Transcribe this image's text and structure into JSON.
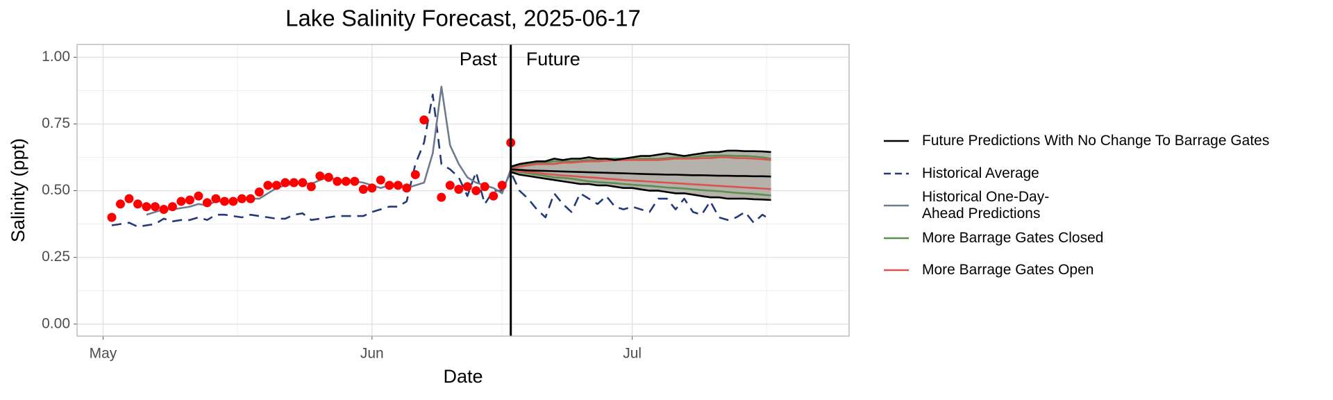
{
  "chart_data": {
    "type": "line",
    "title": "Lake Salinity Forecast, 2025-06-17",
    "x_label": "Date",
    "y_label": "Salinity (ppt)",
    "categories": [
      null,
      null,
      null,
      "May",
      null,
      null,
      null,
      null,
      null,
      null,
      null,
      null,
      null,
      null,
      null,
      null,
      null,
      null,
      null,
      null,
      null,
      null,
      null,
      null,
      null,
      null,
      null,
      null,
      null,
      null,
      null,
      null,
      null,
      null,
      "Jun",
      null,
      null,
      null,
      null,
      null,
      null,
      null,
      null,
      null,
      null,
      null,
      null,
      null,
      null,
      null,
      null,
      null,
      null,
      null,
      null,
      null,
      null,
      null,
      null,
      null,
      null,
      null,
      null,
      null,
      "Jul",
      null,
      null,
      null,
      null,
      null,
      null,
      null,
      null,
      null,
      null,
      null,
      null,
      null,
      null,
      null,
      null,
      null,
      null,
      null,
      null,
      null,
      null,
      null,
      null,
      null
    ],
    "xlim": [
      0,
      89
    ],
    "xminor": [
      18.5,
      49,
      79.5
    ],
    "ylim": [
      -0.045,
      1.048
    ],
    "yticks": [
      {
        "value": 0,
        "label": "0.00"
      },
      {
        "value": 0.25,
        "label": "0.25"
      },
      {
        "value": 0.5,
        "label": "0.50"
      },
      {
        "value": 0.75,
        "label": "0.75"
      },
      {
        "value": 1,
        "label": "1.00"
      }
    ],
    "yminor": [
      0.125,
      0.375,
      0.625,
      0.875
    ],
    "grid": true,
    "vline": {
      "x": 50,
      "labels": [
        "Past",
        "Future"
      ]
    },
    "ribbon": {
      "color": "#b5b2ab",
      "edge_color": "#000000",
      "upper": [
        null,
        null,
        null,
        null,
        null,
        null,
        null,
        null,
        null,
        null,
        null,
        null,
        null,
        null,
        null,
        null,
        null,
        null,
        null,
        null,
        null,
        null,
        null,
        null,
        null,
        null,
        null,
        null,
        null,
        null,
        null,
        null,
        null,
        null,
        null,
        null,
        null,
        null,
        null,
        null,
        null,
        null,
        null,
        null,
        null,
        null,
        null,
        null,
        null,
        null,
        0.59,
        0.6,
        0.605,
        0.61,
        0.61,
        0.62,
        0.615,
        0.62,
        0.62,
        0.625,
        0.62,
        0.62,
        0.615,
        0.62,
        0.625,
        0.63,
        0.63,
        0.635,
        0.64,
        0.635,
        0.63,
        0.635,
        0.64,
        0.645,
        0.645,
        0.65,
        0.65,
        0.648,
        0.648,
        0.647,
        0.645,
        null,
        null,
        null,
        null,
        null,
        null,
        null,
        null,
        null
      ],
      "lower": [
        null,
        null,
        null,
        null,
        null,
        null,
        null,
        null,
        null,
        null,
        null,
        null,
        null,
        null,
        null,
        null,
        null,
        null,
        null,
        null,
        null,
        null,
        null,
        null,
        null,
        null,
        null,
        null,
        null,
        null,
        null,
        null,
        null,
        null,
        null,
        null,
        null,
        null,
        null,
        null,
        null,
        null,
        null,
        null,
        null,
        null,
        null,
        null,
        null,
        null,
        0.57,
        0.56,
        0.555,
        0.55,
        0.545,
        0.54,
        0.535,
        0.53,
        0.525,
        0.525,
        0.52,
        0.52,
        0.515,
        0.51,
        0.51,
        0.505,
        0.5,
        0.5,
        0.495,
        0.49,
        0.49,
        0.485,
        0.48,
        0.475,
        0.475,
        0.47,
        0.47,
        0.47,
        0.468,
        0.467,
        0.465,
        null,
        null,
        null,
        null,
        null,
        null,
        null,
        null,
        null
      ]
    },
    "series": [
      {
        "name": "Future Predictions With No Change To Barrage Gates",
        "color": "#000000",
        "values": [
          null,
          null,
          null,
          null,
          null,
          null,
          null,
          null,
          null,
          null,
          null,
          null,
          null,
          null,
          null,
          null,
          null,
          null,
          null,
          null,
          null,
          null,
          null,
          null,
          null,
          null,
          null,
          null,
          null,
          null,
          null,
          null,
          null,
          null,
          null,
          null,
          null,
          null,
          null,
          null,
          null,
          null,
          null,
          null,
          null,
          null,
          null,
          null,
          null,
          null,
          0.58,
          0.578,
          0.576,
          0.575,
          0.574,
          0.573,
          0.572,
          0.571,
          0.57,
          0.569,
          0.568,
          0.567,
          0.566,
          0.565,
          0.564,
          0.563,
          0.562,
          0.561,
          0.56,
          0.56,
          0.559,
          0.558,
          0.558,
          0.557,
          0.556,
          0.556,
          0.555,
          0.555,
          0.554,
          0.554,
          0.553,
          null,
          null,
          null,
          null,
          null,
          null,
          null,
          null,
          null
        ]
      },
      {
        "name": "Historical Average",
        "color": "#22397a",
        "dashed": true,
        "values": [
          null,
          null,
          null,
          null,
          0.37,
          0.375,
          0.38,
          0.365,
          0.37,
          0.375,
          0.395,
          0.385,
          0.39,
          0.39,
          0.4,
          0.39,
          0.41,
          0.41,
          0.405,
          0.4,
          0.41,
          0.405,
          0.4,
          0.395,
          0.395,
          0.41,
          0.415,
          0.39,
          0.395,
          0.4,
          0.405,
          0.405,
          0.405,
          0.405,
          0.42,
          0.43,
          0.44,
          0.44,
          0.46,
          0.6,
          0.68,
          0.86,
          0.6,
          0.58,
          0.55,
          0.48,
          0.57,
          0.45,
          0.5,
          0.5,
          0.57,
          0.5,
          0.47,
          0.43,
          0.4,
          0.49,
          0.45,
          0.42,
          0.49,
          0.47,
          0.45,
          0.48,
          0.44,
          0.43,
          0.44,
          0.43,
          0.42,
          0.47,
          0.47,
          0.43,
          0.47,
          0.42,
          0.41,
          0.46,
          0.4,
          0.39,
          0.4,
          0.42,
          0.38,
          0.41,
          0.39,
          null,
          null,
          null,
          null,
          null,
          null,
          null,
          null,
          null
        ]
      },
      {
        "name": "Historical One-Day-\nAhead Predictions",
        "color": "#6f7a8f",
        "values": [
          null,
          null,
          null,
          null,
          null,
          null,
          null,
          null,
          0.41,
          0.42,
          0.43,
          0.43,
          0.435,
          0.44,
          0.45,
          0.445,
          0.46,
          0.46,
          0.46,
          0.47,
          0.47,
          0.47,
          0.49,
          0.51,
          0.52,
          0.525,
          0.53,
          0.525,
          0.54,
          0.55,
          0.54,
          0.535,
          0.535,
          0.53,
          0.52,
          0.51,
          0.52,
          0.52,
          0.51,
          0.52,
          0.53,
          0.64,
          0.89,
          0.67,
          0.6,
          0.55,
          0.53,
          0.52,
          0.51,
          0.49,
          0.58,
          null,
          null,
          null,
          null,
          null,
          null,
          null,
          null,
          null,
          null,
          null,
          null,
          null,
          null,
          null,
          null,
          null,
          null,
          null,
          null,
          null,
          null,
          null,
          null,
          null,
          null,
          null,
          null,
          null,
          null,
          null,
          null,
          null,
          null,
          null,
          null,
          null,
          null,
          null
        ]
      },
      {
        "name": "More Barrage Gates Closed",
        "color": "#5a8f4f",
        "values": [
          null,
          null,
          null,
          null,
          null,
          null,
          null,
          null,
          null,
          null,
          null,
          null,
          null,
          null,
          null,
          null,
          null,
          null,
          null,
          null,
          null,
          null,
          null,
          null,
          null,
          null,
          null,
          null,
          null,
          null,
          null,
          null,
          null,
          null,
          null,
          null,
          null,
          null,
          null,
          null,
          null,
          null,
          null,
          null,
          null,
          null,
          null,
          null,
          null,
          null,
          0.585,
          0.595,
          0.6,
          0.605,
          0.605,
          0.61,
          0.61,
          0.61,
          0.612,
          0.615,
          0.615,
          0.62,
          0.62,
          0.62,
          0.62,
          0.62,
          0.62,
          0.62,
          0.622,
          0.625,
          0.625,
          0.625,
          0.63,
          0.63,
          0.632,
          0.632,
          0.63,
          0.63,
          0.628,
          0.625,
          0.62,
          null,
          null,
          null,
          null,
          null,
          null,
          null,
          null,
          null
        ]
      },
      {
        "name": "More Barrage Gates Open",
        "color": "#d9534f",
        "values": [
          null,
          null,
          null,
          null,
          null,
          null,
          null,
          null,
          null,
          null,
          null,
          null,
          null,
          null,
          null,
          null,
          null,
          null,
          null,
          null,
          null,
          null,
          null,
          null,
          null,
          null,
          null,
          null,
          null,
          null,
          null,
          null,
          null,
          null,
          null,
          null,
          null,
          null,
          null,
          null,
          null,
          null,
          null,
          null,
          null,
          null,
          null,
          null,
          null,
          null,
          0.58,
          0.59,
          0.595,
          0.6,
          0.6,
          0.6,
          0.605,
          0.605,
          0.608,
          0.61,
          0.61,
          0.612,
          0.614,
          0.615,
          0.615,
          0.615,
          0.615,
          0.615,
          0.617,
          0.62,
          0.62,
          0.62,
          0.622,
          0.622,
          0.625,
          0.625,
          0.622,
          0.622,
          0.62,
          0.618,
          0.615,
          null,
          null,
          null,
          null,
          null,
          null,
          null,
          null,
          null
        ]
      },
      {
        "color": "#5a8f4f",
        "values": [
          null,
          null,
          null,
          null,
          null,
          null,
          null,
          null,
          null,
          null,
          null,
          null,
          null,
          null,
          null,
          null,
          null,
          null,
          null,
          null,
          null,
          null,
          null,
          null,
          null,
          null,
          null,
          null,
          null,
          null,
          null,
          null,
          null,
          null,
          null,
          null,
          null,
          null,
          null,
          null,
          null,
          null,
          null,
          null,
          null,
          null,
          null,
          null,
          null,
          null,
          0.575,
          0.57,
          0.565,
          0.56,
          0.555,
          0.55,
          0.548,
          0.545,
          0.54,
          0.535,
          0.532,
          0.53,
          0.528,
          0.525,
          0.522,
          0.52,
          0.518,
          0.515,
          0.512,
          0.51,
          0.508,
          0.505,
          0.502,
          0.5,
          0.498,
          0.495,
          0.492,
          0.49,
          0.488,
          0.485,
          0.482,
          null,
          null,
          null,
          null,
          null,
          null,
          null,
          null,
          null
        ]
      },
      {
        "color": "#d9534f",
        "values": [
          null,
          null,
          null,
          null,
          null,
          null,
          null,
          null,
          null,
          null,
          null,
          null,
          null,
          null,
          null,
          null,
          null,
          null,
          null,
          null,
          null,
          null,
          null,
          null,
          null,
          null,
          null,
          null,
          null,
          null,
          null,
          null,
          null,
          null,
          null,
          null,
          null,
          null,
          null,
          null,
          null,
          null,
          null,
          null,
          null,
          null,
          null,
          null,
          null,
          null,
          0.578,
          0.573,
          0.57,
          0.567,
          0.563,
          0.56,
          0.557,
          0.555,
          0.552,
          0.55,
          0.548,
          0.545,
          0.543,
          0.54,
          0.538,
          0.536,
          0.534,
          0.532,
          0.53,
          0.528,
          0.526,
          0.524,
          0.522,
          0.52,
          0.518,
          0.516,
          0.514,
          0.512,
          0.51,
          0.508,
          0.506,
          null,
          null,
          null,
          null,
          null,
          null,
          null,
          null,
          null
        ]
      },
      {
        "color": "#ff0000",
        "points": true,
        "values": [
          null,
          null,
          null,
          null,
          0.4,
          0.45,
          0.47,
          0.45,
          0.44,
          0.44,
          0.43,
          0.44,
          0.46,
          0.465,
          0.48,
          0.455,
          0.47,
          0.46,
          0.46,
          0.47,
          0.47,
          0.495,
          0.52,
          0.52,
          0.53,
          0.53,
          0.53,
          0.515,
          0.555,
          0.55,
          0.535,
          0.535,
          0.535,
          0.505,
          0.51,
          0.54,
          0.52,
          0.52,
          0.51,
          0.56,
          0.765,
          null,
          0.475,
          0.52,
          0.505,
          0.515,
          0.5,
          0.515,
          0.48,
          0.52,
          0.68,
          null,
          null,
          null,
          null,
          null,
          null,
          null,
          null,
          null,
          null,
          null,
          null,
          null,
          null,
          null,
          null,
          null,
          null,
          null,
          null,
          null,
          null,
          null,
          null,
          null,
          null,
          null,
          null,
          null,
          null,
          null,
          null,
          null,
          null,
          null,
          null,
          null,
          null,
          null
        ]
      }
    ]
  }
}
